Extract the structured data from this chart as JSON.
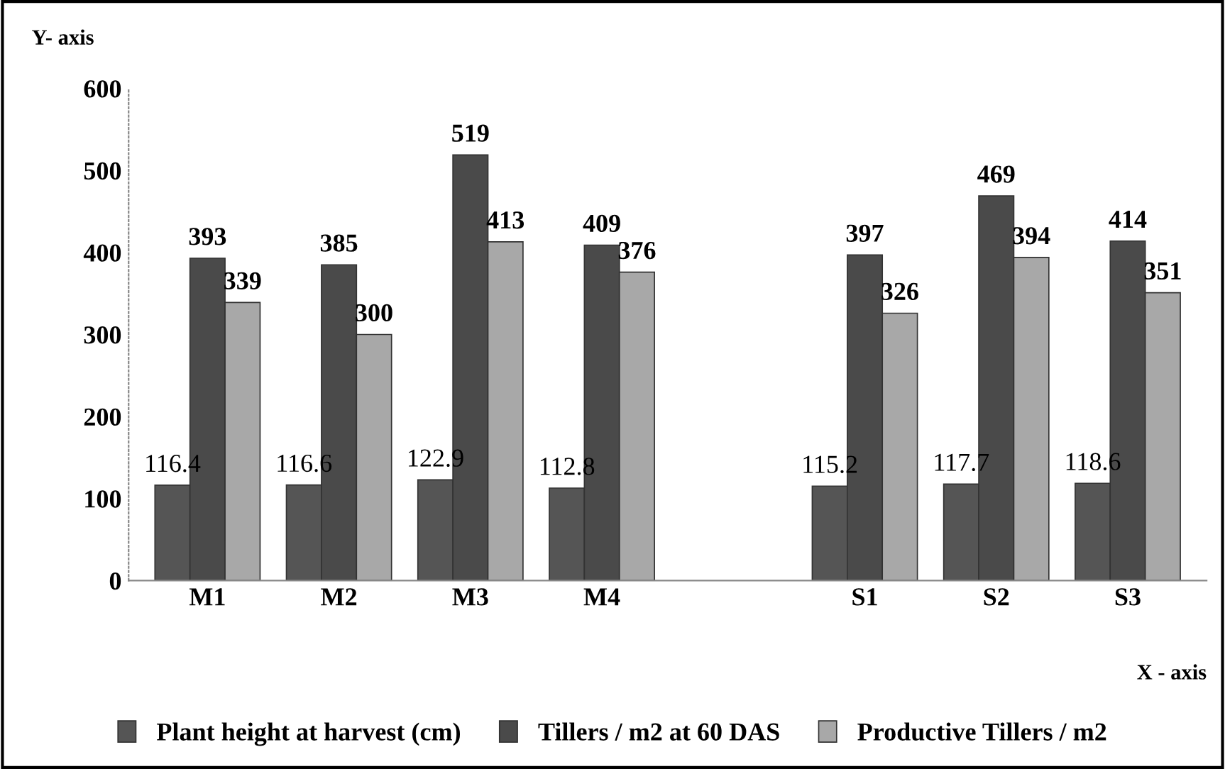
{
  "chart_data": {
    "type": "bar",
    "xlabel": "X - axis",
    "ylabel": "Y- axis",
    "categories": [
      "M1",
      "M2",
      "M3",
      "M4",
      null,
      "S1",
      "S2",
      "S3"
    ],
    "series": [
      {
        "name": "Plant height at harvest (cm)",
        "color": "#555555",
        "values": [
          116.4,
          116.6,
          122.9,
          112.8,
          null,
          115.2,
          117.7,
          118.6
        ]
      },
      {
        "name": "Tillers / m2 at 60 DAS",
        "color": "#4a4a4a",
        "values": [
          393,
          385,
          519,
          409,
          null,
          397,
          469,
          414
        ]
      },
      {
        "name": "Productive Tillers / m2",
        "color": "#a8a8a8",
        "values": [
          339,
          300,
          413,
          376,
          null,
          326,
          394,
          351
        ]
      }
    ],
    "ylim": [
      0,
      600
    ],
    "yticks": [
      0,
      100,
      200,
      300,
      400,
      500,
      600
    ],
    "grid": false,
    "legend": "bottom",
    "data_labels": true
  }
}
